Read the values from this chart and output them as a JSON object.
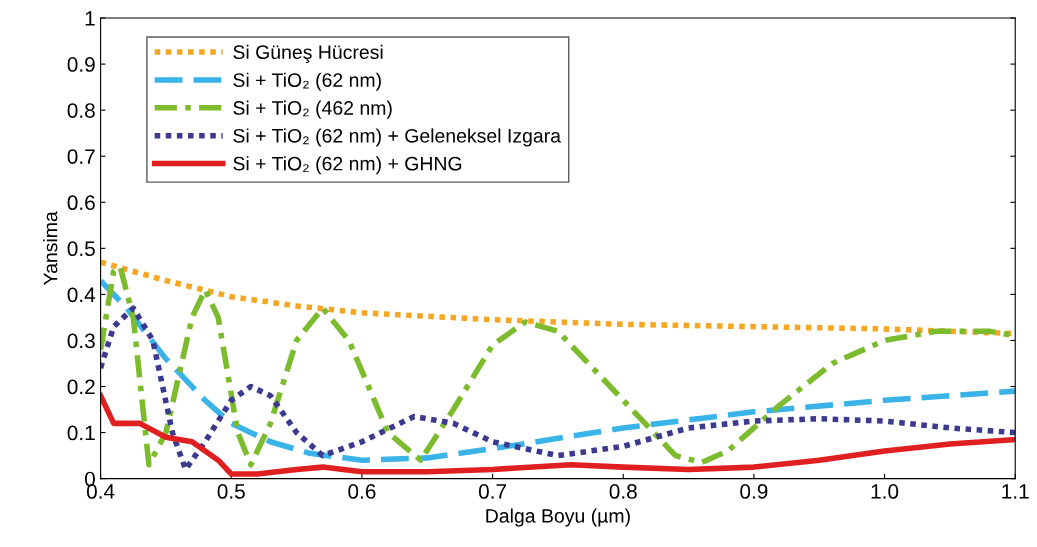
{
  "chart_data": {
    "type": "line",
    "xlabel": "Dalga Boyu (µm)",
    "ylabel": "Yansima",
    "xlim": [
      0.4,
      1.1
    ],
    "ylim": [
      0,
      1
    ],
    "xticks": [
      0.4,
      0.5,
      0.6,
      0.7,
      0.8,
      0.9,
      {
        "value": 1.0,
        "label": "1.0"
      },
      1.1
    ],
    "yticks": [
      0,
      0.1,
      0.2,
      0.3,
      0.4,
      0.5,
      0.6,
      0.7,
      0.8,
      0.9,
      1
    ],
    "grid": false,
    "legend": "top left",
    "marker": "none",
    "series": [
      {
        "name": "Si Güneş Hücresi",
        "color": "#f5a623",
        "line_style": "dotted",
        "x": [
          0.4,
          0.45,
          0.5,
          0.55,
          0.6,
          0.7,
          0.8,
          0.9,
          1.0,
          1.1
        ],
        "values": [
          0.47,
          0.43,
          0.395,
          0.375,
          0.36,
          0.345,
          0.335,
          0.33,
          0.325,
          0.315
        ]
      },
      {
        "name": "Si + TiO₂ (62 nm)",
        "color": "#3ab4e8",
        "line_style": "dashed",
        "x": [
          0.4,
          0.42,
          0.45,
          0.48,
          0.5,
          0.53,
          0.56,
          0.6,
          0.65,
          0.7,
          0.8,
          0.9,
          1.0,
          1.1
        ],
        "values": [
          0.43,
          0.37,
          0.26,
          0.17,
          0.12,
          0.08,
          0.055,
          0.04,
          0.045,
          0.065,
          0.11,
          0.145,
          0.17,
          0.19
        ]
      },
      {
        "name": "Si + TiO₂ (462 nm)",
        "color": "#7dbb2e",
        "line_style": "dashdot",
        "x": [
          0.4,
          0.41,
          0.415,
          0.425,
          0.437,
          0.45,
          0.47,
          0.48,
          0.49,
          0.505,
          0.515,
          0.53,
          0.55,
          0.57,
          0.59,
          0.62,
          0.645,
          0.67,
          0.7,
          0.725,
          0.75,
          0.8,
          0.84,
          0.86,
          0.88,
          0.92,
          0.96,
          1.0,
          1.04,
          1.08,
          1.1
        ],
        "values": [
          0.28,
          0.45,
          0.46,
          0.35,
          0.03,
          0.1,
          0.35,
          0.41,
          0.35,
          0.1,
          0.03,
          0.12,
          0.3,
          0.37,
          0.3,
          0.1,
          0.04,
          0.15,
          0.29,
          0.34,
          0.32,
          0.17,
          0.05,
          0.035,
          0.06,
          0.16,
          0.25,
          0.3,
          0.32,
          0.32,
          0.31
        ]
      },
      {
        "name": "Si + TiO₂ (62 nm) + Geleneksel Izgara",
        "color": "#3b3a8f",
        "line_style": "dotted",
        "x": [
          0.4,
          0.41,
          0.425,
          0.44,
          0.455,
          0.465,
          0.48,
          0.5,
          0.515,
          0.53,
          0.55,
          0.57,
          0.6,
          0.64,
          0.67,
          0.7,
          0.75,
          0.8,
          0.85,
          0.9,
          0.95,
          1.0,
          1.05,
          1.1
        ],
        "values": [
          0.24,
          0.33,
          0.37,
          0.3,
          0.1,
          0.02,
          0.08,
          0.17,
          0.2,
          0.18,
          0.1,
          0.05,
          0.08,
          0.135,
          0.12,
          0.08,
          0.05,
          0.07,
          0.11,
          0.125,
          0.13,
          0.125,
          0.11,
          0.1
        ]
      },
      {
        "name": "Si + TiO₂ (62 nm) + GHNG",
        "color": "#e02020",
        "line_style": "solid",
        "x": [
          0.4,
          0.41,
          0.42,
          0.43,
          0.45,
          0.47,
          0.49,
          0.5,
          0.52,
          0.55,
          0.57,
          0.6,
          0.65,
          0.7,
          0.76,
          0.8,
          0.85,
          0.9,
          0.95,
          1.0,
          1.05,
          1.1
        ],
        "values": [
          0.18,
          0.12,
          0.12,
          0.12,
          0.09,
          0.08,
          0.04,
          0.01,
          0.01,
          0.02,
          0.025,
          0.015,
          0.015,
          0.02,
          0.03,
          0.025,
          0.02,
          0.025,
          0.04,
          0.06,
          0.075,
          0.085
        ]
      }
    ]
  }
}
